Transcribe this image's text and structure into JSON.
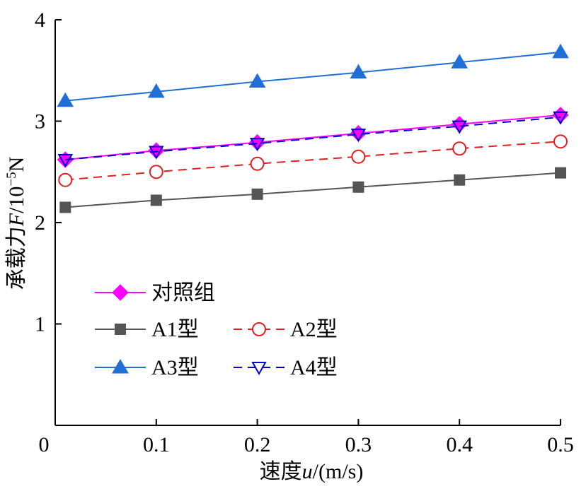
{
  "chart_data": {
    "type": "line",
    "xlabel": {
      "prefix": "速度",
      "var": "u",
      "suffix": "/(m/s)"
    },
    "ylabel": {
      "prefix": "承载力",
      "var": "F",
      "suffix": "/10",
      "sup": "−5",
      "unit": "N"
    },
    "xlim": [
      0,
      0.5
    ],
    "ylim": [
      0,
      4
    ],
    "x_ticks": [
      "0",
      "0.1",
      "0.2",
      "0.3",
      "0.4",
      "0.5"
    ],
    "y_ticks": [
      "1",
      "2",
      "3",
      "4"
    ],
    "x": [
      0.01,
      0.1,
      0.2,
      0.3,
      0.4,
      0.5
    ],
    "grid": false,
    "legend_placement": "lower-left",
    "series": [
      {
        "name": "对照组",
        "values": [
          2.62,
          2.71,
          2.79,
          2.88,
          2.97,
          3.06
        ],
        "color": "#ff00ff",
        "marker": "diamond-filled",
        "dash": "solid"
      },
      {
        "name": "A1型",
        "values": [
          2.15,
          2.22,
          2.28,
          2.35,
          2.42,
          2.49
        ],
        "color": "#555555",
        "marker": "square-filled",
        "dash": "solid"
      },
      {
        "name": "A2型",
        "values": [
          2.42,
          2.5,
          2.58,
          2.65,
          2.73,
          2.8
        ],
        "color": "#e02020",
        "marker": "circle-open",
        "dash": "dashed"
      },
      {
        "name": "A3型",
        "values": [
          3.2,
          3.29,
          3.39,
          3.48,
          3.58,
          3.68
        ],
        "color": "#1f6fd6",
        "marker": "triangle-up-filled",
        "dash": "solid"
      },
      {
        "name": "A4型",
        "values": [
          2.62,
          2.7,
          2.78,
          2.87,
          2.95,
          3.04
        ],
        "color": "#0000cc",
        "marker": "triangle-down-open",
        "dash": "dashed"
      }
    ]
  }
}
